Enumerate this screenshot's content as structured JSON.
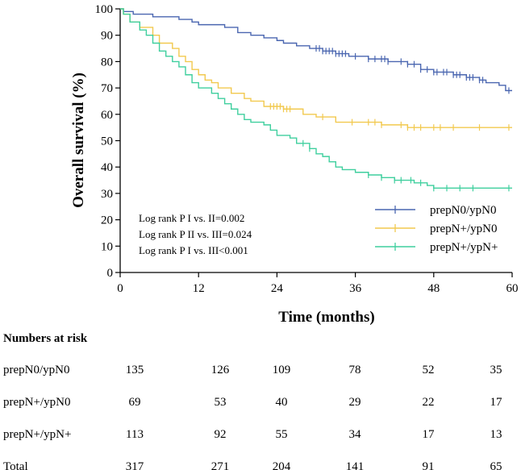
{
  "chart_data": {
    "type": "line",
    "subtype": "kaplan-meier",
    "title": "",
    "xlabel": "Time (months)",
    "ylabel": "Overall survival (%)",
    "xlim": [
      0,
      60
    ],
    "ylim": [
      0,
      100
    ],
    "x_ticks": [
      0,
      12,
      24,
      36,
      48,
      60
    ],
    "y_ticks": [
      0,
      10,
      20,
      30,
      40,
      50,
      60,
      70,
      80,
      90,
      100
    ],
    "colors": {
      "prepN0_ypN0": "#4a66b0",
      "prepN_ypN0": "#f2c94f",
      "prepN_ypN": "#3fcf9e"
    },
    "series": [
      {
        "name": "prepN0/ypN0",
        "color": "#4a66b0",
        "steps": [
          [
            0,
            100
          ],
          [
            0.5,
            99
          ],
          [
            2,
            98
          ],
          [
            5,
            97
          ],
          [
            9,
            96
          ],
          [
            11,
            95
          ],
          [
            12,
            94
          ],
          [
            16,
            93
          ],
          [
            18,
            91
          ],
          [
            20,
            90
          ],
          [
            22,
            89
          ],
          [
            24,
            88
          ],
          [
            25,
            87
          ],
          [
            27,
            86
          ],
          [
            29,
            85
          ],
          [
            31,
            84
          ],
          [
            33,
            83
          ],
          [
            35,
            82
          ],
          [
            38,
            81
          ],
          [
            41,
            80
          ],
          [
            44,
            79
          ],
          [
            46,
            77
          ],
          [
            48,
            76
          ],
          [
            51,
            75
          ],
          [
            53,
            74
          ],
          [
            55,
            73
          ],
          [
            56,
            72
          ],
          [
            58,
            71
          ],
          [
            59,
            69
          ]
        ],
        "censor_times": [
          30,
          30.5,
          31,
          31.5,
          32,
          32.5,
          33,
          33.5,
          34,
          34.5,
          36,
          38,
          39,
          40,
          40.5,
          41,
          43,
          44,
          45,
          46,
          47,
          48,
          48.5,
          49.5,
          50,
          51,
          51.5,
          52,
          53,
          53.5,
          54,
          55,
          55.5,
          59.5
        ]
      },
      {
        "name": "prepN+/ypN0",
        "color": "#f2c94f",
        "steps": [
          [
            0,
            100
          ],
          [
            0.5,
            98
          ],
          [
            1.5,
            95
          ],
          [
            3,
            93
          ],
          [
            5,
            90
          ],
          [
            6,
            87
          ],
          [
            8,
            85
          ],
          [
            9,
            82
          ],
          [
            10,
            80
          ],
          [
            11,
            77
          ],
          [
            12,
            75
          ],
          [
            13,
            73
          ],
          [
            14,
            72
          ],
          [
            15,
            70
          ],
          [
            17,
            68
          ],
          [
            19,
            66
          ],
          [
            20,
            65
          ],
          [
            22,
            63
          ],
          [
            25,
            62
          ],
          [
            28,
            60
          ],
          [
            30,
            59
          ],
          [
            33,
            57
          ],
          [
            40,
            56
          ],
          [
            44,
            55
          ]
        ],
        "censor_times": [
          23,
          23.5,
          24,
          24.5,
          25,
          25.5,
          26,
          31,
          35.5,
          38,
          39,
          40,
          43,
          44,
          45,
          46,
          48,
          49,
          51,
          55,
          59.5
        ]
      },
      {
        "name": "prepN+/ypN+",
        "color": "#3fcf9e",
        "steps": [
          [
            0,
            100
          ],
          [
            0.5,
            98
          ],
          [
            1.5,
            95
          ],
          [
            3,
            92
          ],
          [
            4,
            90
          ],
          [
            5,
            87
          ],
          [
            6,
            84
          ],
          [
            7,
            82
          ],
          [
            8,
            80
          ],
          [
            9,
            78
          ],
          [
            10,
            75
          ],
          [
            11,
            72
          ],
          [
            12,
            70
          ],
          [
            14,
            68
          ],
          [
            15,
            66
          ],
          [
            16,
            64
          ],
          [
            17,
            62
          ],
          [
            18,
            60
          ],
          [
            19,
            58
          ],
          [
            20,
            57
          ],
          [
            22,
            56
          ],
          [
            23,
            54
          ],
          [
            24,
            52
          ],
          [
            26,
            51
          ],
          [
            27,
            49
          ],
          [
            29,
            47
          ],
          [
            30,
            45
          ],
          [
            31,
            44
          ],
          [
            32,
            42
          ],
          [
            33,
            40
          ],
          [
            34,
            39
          ],
          [
            36,
            38
          ],
          [
            38,
            37
          ],
          [
            40,
            36
          ],
          [
            42,
            35
          ],
          [
            45,
            34
          ],
          [
            47,
            33
          ],
          [
            48,
            32
          ],
          [
            57,
            32
          ]
        ],
        "censor_times": [
          28,
          29,
          38,
          40,
          42,
          43,
          44.5,
          46,
          48,
          50,
          52,
          54,
          59.5
        ]
      }
    ],
    "annotations": [
      "Log rank P I vs. II=0.002",
      "Log rank P II vs. III=0.024",
      "Log rank P I vs. III<0.001"
    ],
    "legend": {
      "placement": "bottom-right",
      "entries": [
        "prepN0/ypN0",
        "prepN+/ypN0",
        "prepN+/ypN+"
      ]
    },
    "risk_table": {
      "title": "Numbers at risk",
      "rows": [
        {
          "label": "prepN0/ypN0",
          "values": [
            135,
            126,
            109,
            78,
            52,
            35
          ]
        },
        {
          "label": "prepN+/ypN0",
          "values": [
            69,
            53,
            40,
            29,
            22,
            17
          ]
        },
        {
          "label": "prepN+/ypN+",
          "values": [
            113,
            92,
            55,
            34,
            17,
            13
          ]
        },
        {
          "label": "Total",
          "values": [
            317,
            271,
            204,
            141,
            91,
            65
          ]
        }
      ]
    }
  }
}
